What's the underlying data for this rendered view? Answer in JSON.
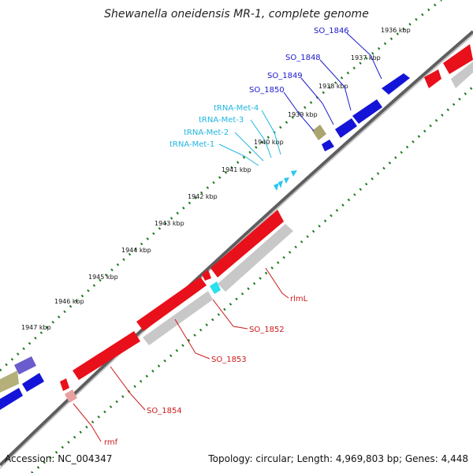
{
  "title": "Shewanella oneidensis MR-1, complete genome",
  "footer": {
    "accession": "Accession: NC_004347",
    "summary": "Topology: circular; Length: 4,969,803 bp; Genes: 4,448"
  },
  "colors": {
    "forward_gene": "#1010d8",
    "reverse_gene": "#e8101a",
    "reverse_gene_light": "#c8c8c8",
    "trna": "#29c7ee",
    "backbone": "#777777",
    "ticks": "#1e7a1e",
    "forward_label": "#1a1acc",
    "reverse_label": "#cc1a1a",
    "trna_label": "#22b6e0"
  },
  "tick_labels": [
    "1936 kbp",
    "1937 kbp",
    "1938 kbp",
    "1939 kbp",
    "1940 kbp",
    "1941 kbp",
    "1942 kbp",
    "1943 kbp",
    "1944 kbp",
    "1945 kbp",
    "1946 kbp",
    "1947 kbp"
  ],
  "forward_gene_labels": [
    "SO_1846",
    "SO_1848",
    "SO_1849",
    "SO_1850"
  ],
  "trna_labels": [
    "tRNA-Met-4",
    "tRNA-Met-3",
    "tRNA-Met-2",
    "tRNA-Met-1"
  ],
  "reverse_gene_labels": [
    "rlmL",
    "SO_1852",
    "SO_1853",
    "SO_1854",
    "rmf"
  ]
}
